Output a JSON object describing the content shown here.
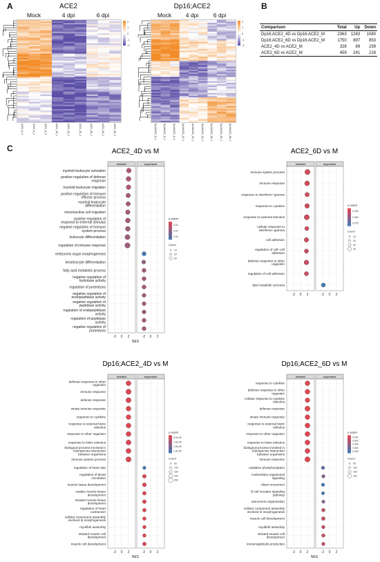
{
  "panels": {
    "a": "A",
    "b": "B",
    "c": "C"
  },
  "heatmaps": [
    {
      "title": "ACE2",
      "groups": [
        "Mock",
        "4 dpi",
        "6 dpi"
      ],
      "columns": [
        "ACE2_M_1",
        "ACE2_M_2",
        "ACE2_M_3",
        "ACE2_4D_1",
        "ACE2_4D_2",
        "ACE2_4D_3",
        "ACE2_6D_1",
        "ACE2_6D_2",
        "ACE2_6D_3"
      ],
      "scale": [
        "2",
        "1",
        "0",
        "-1",
        "-2"
      ]
    },
    {
      "title": "Dp16;ACE2",
      "groups": [
        "Mock",
        "4 dpi",
        "6 dpi"
      ],
      "columns": [
        "Dp16ACE2_M_1",
        "Dp16ACE2_M_2",
        "Dp16ACE2_M_3",
        "Dp16ACE2_4D_1",
        "Dp16ACE2_4D_2",
        "Dp16ACE2_4D_3",
        "Dp16ACE2_6D_1",
        "Dp16ACE2_6D_2",
        "Dp16ACE2_6D_3"
      ],
      "scale": [
        "2",
        "1",
        "0",
        "-1",
        "-2"
      ]
    }
  ],
  "colors": {
    "up": "#f28c28",
    "down": "#5b4ea6",
    "mid": "#ffffff",
    "dot": "#e8444f",
    "dot_low": "#3f79b5",
    "strip": "#d9d9d9"
  },
  "table": {
    "headers": [
      "Comparison",
      "Total",
      "Up",
      "Down"
    ],
    "rows": [
      [
        "Dp16;ACE2_4D vs Dp16;ACE2_M",
        "2363",
        "1283",
        "1080"
      ],
      [
        "Dp16;ACE2_6D vs Dp16;ACE2_M",
        "1750",
        "897",
        "853"
      ],
      [
        "ACE2_4D vs ACE2_M",
        "328",
        "89",
        "239"
      ],
      [
        "ACE2_6D vs ACE2_M",
        "459",
        "241",
        "218"
      ]
    ]
  },
  "chart_data": [
    {
      "type": "scatter",
      "title": "ACE2_4D vs M",
      "xlabel": "NES",
      "xlim": [
        -4,
        4
      ],
      "xticks": [
        "-2",
        "0",
        "2",
        "-2",
        "0",
        "2"
      ],
      "facets": [
        "activated",
        "suppressed"
      ],
      "legend": {
        "color_title": "p.adjust",
        "color_ticks": [
          "0.01",
          "0.02",
          "0.03"
        ],
        "size_title": "Count",
        "size_ticks": [
          "10",
          "20",
          "30"
        ]
      },
      "activated": [
        {
          "term": "myeloid leukocyte activation",
          "nes": 2.1,
          "count": 24,
          "padj": 0.01
        },
        {
          "term": "positive regulation of defense response",
          "nes": 2.0,
          "count": 26,
          "padj": 0.01
        },
        {
          "term": "myeloid leukocyte migration",
          "nes": 2.0,
          "count": 22,
          "padj": 0.01
        },
        {
          "term": "positive regulation of immune effector process",
          "nes": 1.9,
          "count": 20,
          "padj": 0.012
        },
        {
          "term": "myeloid leukocyte differentiation",
          "nes": 1.9,
          "count": 18,
          "padj": 0.012
        },
        {
          "term": "mononuclear cell migration",
          "nes": 1.8,
          "count": 20,
          "padj": 0.012
        },
        {
          "term": "positive regulation of response to external stimulus",
          "nes": 1.8,
          "count": 26,
          "padj": 0.012
        },
        {
          "term": "negative regulation of immune system process",
          "nes": 1.8,
          "count": 25,
          "padj": 0.013
        },
        {
          "term": "leukocyte differentiation",
          "nes": 1.7,
          "count": 30,
          "padj": 0.013
        },
        {
          "term": "regulation of immune response",
          "nes": 1.7,
          "count": 34,
          "padj": 0.013
        }
      ],
      "suppressed": [
        {
          "term": "embryonic organ morphogenesis",
          "nes": -1.9,
          "count": 14,
          "padj": 0.03
        },
        {
          "term": "keratinocyte differentiation",
          "nes": -2.0,
          "count": 12,
          "padj": 0.015
        },
        {
          "term": "fatty acid metabolic process",
          "nes": -1.9,
          "count": 14,
          "padj": 0.012
        },
        {
          "term": "negative regulation of hydrolase activity",
          "nes": -1.9,
          "count": 14,
          "padj": 0.012
        },
        {
          "term": "regulation of proteolysis",
          "nes": -1.9,
          "count": 14,
          "padj": 0.012
        },
        {
          "term": "negative regulation of endopeptidase activity",
          "nes": -1.9,
          "count": 12,
          "padj": 0.012
        },
        {
          "term": "negative regulation of peptidase activity",
          "nes": -1.9,
          "count": 12,
          "padj": 0.012
        },
        {
          "term": "regulation of endopeptidase activity",
          "nes": -1.9,
          "count": 12,
          "padj": 0.012
        },
        {
          "term": "regulation of peptidase activity",
          "nes": -1.9,
          "count": 14,
          "padj": 0.012
        },
        {
          "term": "negative regulation of proteolysis",
          "nes": -1.9,
          "count": 14,
          "padj": 0.012
        }
      ]
    },
    {
      "type": "scatter",
      "title": "ACE2_6D vs M",
      "xlabel": "",
      "xlim": [
        -4,
        4
      ],
      "xticks": [
        "-2",
        "0",
        "2",
        "-2",
        "0",
        "2"
      ],
      "facets": [
        "activated",
        "suppressed"
      ],
      "legend": {
        "color_title": "p.adjust",
        "color_ticks": [
          "0.025",
          "0.050",
          "0.075"
        ],
        "size_title": "Count",
        "size_ticks": [
          "10",
          "20",
          "30",
          "40"
        ]
      },
      "activated": [
        {
          "term": "immune system process",
          "nes": 2.0,
          "count": 42,
          "padj": 0.01
        },
        {
          "term": "immune response",
          "nes": 1.9,
          "count": 34,
          "padj": 0.01
        },
        {
          "term": "response to interferon−gamma",
          "nes": 1.9,
          "count": 22,
          "padj": 0.01
        },
        {
          "term": "response to cytokine",
          "nes": 1.9,
          "count": 28,
          "padj": 0.012
        },
        {
          "term": "response to external stimulus",
          "nes": 1.8,
          "count": 40,
          "padj": 0.012
        },
        {
          "term": "cellular response to interferon−gamma",
          "nes": 1.8,
          "count": 18,
          "padj": 0.012
        },
        {
          "term": "cell adhesion",
          "nes": 1.7,
          "count": 26,
          "padj": 0.014
        },
        {
          "term": "regulation of cell−cell adhesion",
          "nes": 1.7,
          "count": 20,
          "padj": 0.014
        },
        {
          "term": "defense response to other organism",
          "nes": 1.7,
          "count": 30,
          "padj": 0.015
        },
        {
          "term": "regulation of cell adhesion",
          "nes": 1.7,
          "count": 20,
          "padj": 0.015
        }
      ],
      "suppressed": [
        {
          "term": "lipid metabolic process",
          "nes": -1.8,
          "count": 18,
          "padj": 0.08
        }
      ]
    },
    {
      "type": "scatter",
      "title": "Dp16;ACE2_4D vs M",
      "xlabel": "NES",
      "xlim": [
        -4,
        4
      ],
      "xticks": [
        "-2",
        "0",
        "2",
        "-2",
        "0",
        "2"
      ],
      "facets": [
        "activated",
        "suppressed"
      ],
      "legend": {
        "color_title": "p.adjust",
        "color_ticks": [
          "5.0e-06",
          "1.0e-05",
          "1.5e-05",
          "2.0e-05"
        ],
        "size_title": "Count",
        "size_ticks": [
          "50",
          "100",
          "150",
          "200",
          "250"
        ]
      },
      "activated": [
        {
          "term": "defense response to other organism",
          "nes": 2.0,
          "count": 210,
          "padj": 1e-06
        },
        {
          "term": "immune response",
          "nes": 2.0,
          "count": 250,
          "padj": 1e-06
        },
        {
          "term": "defense response",
          "nes": 2.0,
          "count": 240,
          "padj": 1e-06
        },
        {
          "term": "innate immune response",
          "nes": 2.0,
          "count": 200,
          "padj": 1e-06
        },
        {
          "term": "response to cytokine",
          "nes": 2.0,
          "count": 190,
          "padj": 1e-06
        },
        {
          "term": "response to external biotic stimulus",
          "nes": 2.0,
          "count": 210,
          "padj": 1e-06
        },
        {
          "term": "response to other organism",
          "nes": 2.0,
          "count": 210,
          "padj": 1e-06
        },
        {
          "term": "response to biotic stimulus",
          "nes": 2.0,
          "count": 220,
          "padj": 1e-06
        },
        {
          "term": "biological process involved in interspecies interaction between organisms",
          "nes": 2.0,
          "count": 220,
          "padj": 1e-06
        },
        {
          "term": "immune system process",
          "nes": 2.0,
          "count": 260,
          "padj": 1e-06
        }
      ],
      "suppressed": [
        {
          "term": "regulation of heart rate",
          "nes": -1.8,
          "count": 40,
          "padj": 2e-05
        },
        {
          "term": "regulation of blood circulation",
          "nes": -1.8,
          "count": 80,
          "padj": 1e-06
        },
        {
          "term": "muscle tissue development",
          "nes": -1.8,
          "count": 90,
          "padj": 1e-06
        },
        {
          "term": "cardiac muscle tissue development",
          "nes": -1.8,
          "count": 70,
          "padj": 1e-06
        },
        {
          "term": "striated muscle tissue development",
          "nes": -1.8,
          "count": 80,
          "padj": 1e-06
        },
        {
          "term": "regulation of heart contraction",
          "nes": -1.8,
          "count": 70,
          "padj": 1e-06
        },
        {
          "term": "cellular component assembly involved in morphogenesis",
          "nes": -1.8,
          "count": 60,
          "padj": 1e-06
        },
        {
          "term": "myofibril assembly",
          "nes": -1.8,
          "count": 50,
          "padj": 1e-06
        },
        {
          "term": "striated muscle cell development",
          "nes": -1.8,
          "count": 60,
          "padj": 1e-06
        },
        {
          "term": "muscle cell development",
          "nes": -1.8,
          "count": 70,
          "padj": 1e-06
        }
      ]
    },
    {
      "type": "scatter",
      "title": "Dp16;ACE2_6D vs M",
      "xlabel": "NES",
      "xlim": [
        -4,
        4
      ],
      "xticks": [
        "-2",
        "0",
        "2",
        "-2",
        "0",
        "2"
      ],
      "facets": [
        "activated",
        "suppressed"
      ],
      "legend": {
        "color_title": "p.adjust",
        "color_ticks": [
          "0.001",
          "0.002",
          "0.003",
          "0.004",
          "0.005"
        ],
        "size_title": "Count",
        "size_ticks": [
          "50",
          "100",
          "150",
          "200"
        ]
      },
      "activated": [
        {
          "term": "response to cytokine",
          "nes": 2.0,
          "count": 160,
          "padj": 0.0001
        },
        {
          "term": "defense response to other organism",
          "nes": 2.0,
          "count": 170,
          "padj": 0.0001
        },
        {
          "term": "cellular response to cytokine stimulus",
          "nes": 2.0,
          "count": 140,
          "padj": 0.0001
        },
        {
          "term": "defense response",
          "nes": 2.0,
          "count": 200,
          "padj": 0.0001
        },
        {
          "term": "innate immune response",
          "nes": 2.0,
          "count": 160,
          "padj": 0.0001
        },
        {
          "term": "response to external biotic stimulus",
          "nes": 2.0,
          "count": 180,
          "padj": 0.0001
        },
        {
          "term": "response to other organism",
          "nes": 2.0,
          "count": 180,
          "padj": 0.0001
        },
        {
          "term": "response to biotic stimulus",
          "nes": 2.0,
          "count": 180,
          "padj": 0.0001
        },
        {
          "term": "biological process involved in interspecies interaction between organisms",
          "nes": 2.0,
          "count": 180,
          "padj": 0.0001
        },
        {
          "term": "immune response",
          "nes": 2.0,
          "count": 220,
          "padj": 0.0001
        }
      ],
      "suppressed": [
        {
          "term": "oxidative phosphorylation",
          "nes": -1.9,
          "count": 40,
          "padj": 0.004
        },
        {
          "term": "multicellular organismal signaling",
          "nes": -1.8,
          "count": 40,
          "padj": 0.003
        },
        {
          "term": "cilium movement",
          "nes": -1.9,
          "count": 40,
          "padj": 0.005
        },
        {
          "term": "B cell receptor signaling pathway",
          "nes": -1.9,
          "count": 30,
          "padj": 0.005
        },
        {
          "term": "sarcomere organization",
          "nes": -1.8,
          "count": 30,
          "padj": 0.003
        },
        {
          "term": "cellular component assembly involved in morphogenesis",
          "nes": -1.8,
          "count": 50,
          "padj": 0.001
        },
        {
          "term": "muscle cell development",
          "nes": -1.8,
          "count": 60,
          "padj": 0.001
        },
        {
          "term": "myofibril assembly",
          "nes": -1.8,
          "count": 40,
          "padj": 0.001
        },
        {
          "term": "striated muscle cell development",
          "nes": -1.8,
          "count": 50,
          "padj": 0.001
        },
        {
          "term": "immunoglobulin production",
          "nes": -1.8,
          "count": 40,
          "padj": 0.001
        }
      ]
    }
  ]
}
